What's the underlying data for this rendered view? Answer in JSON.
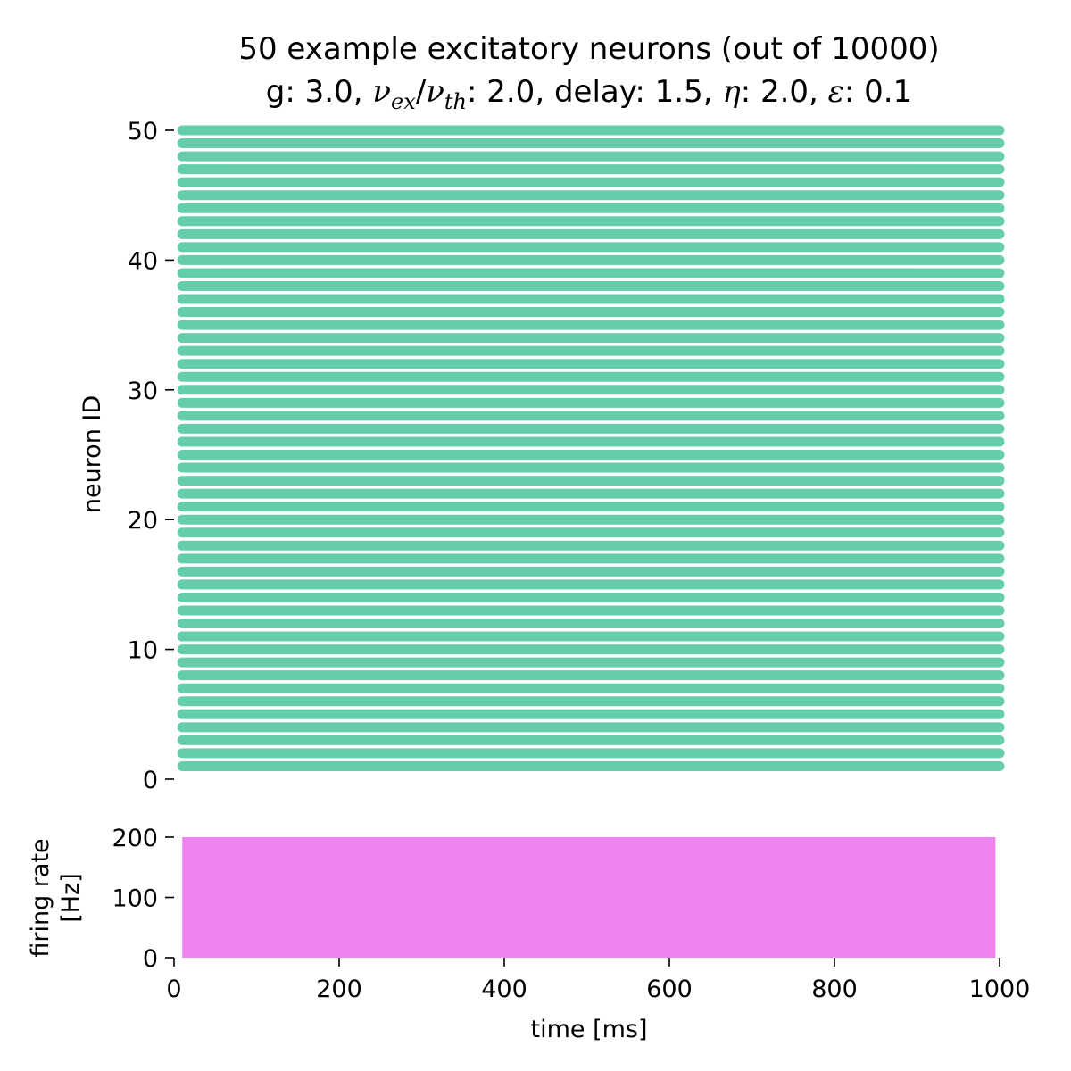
{
  "chart_data": [
    {
      "type": "scatter",
      "title_line1": "50 example excitatory neurons (out of 10000)",
      "title_line2": {
        "g_label": "g: ",
        "g": "3.0",
        "nu_ex": "ν",
        "nu_ex_sub": "ex",
        "slash": "/",
        "nu_th": "ν",
        "nu_th_sub": "th",
        "ratio_value": ": 2.0, ",
        "delay_text": "delay: 1.5, ",
        "eta_symbol": "η",
        "eta_value": ": 2.0, ",
        "eps_symbol": "ε",
        "eps_value": ": 0.1"
      },
      "xlabel": "",
      "ylabel": "neuron ID",
      "xlim": [
        0,
        1000
      ],
      "ylim": [
        0,
        50
      ],
      "yticks": [
        "0",
        "10",
        "20",
        "30",
        "40",
        "50"
      ],
      "ytick_values": [
        0,
        10,
        20,
        30,
        40,
        50
      ],
      "neuron_ids": [
        1,
        2,
        3,
        4,
        5,
        6,
        7,
        8,
        9,
        10,
        11,
        12,
        13,
        14,
        15,
        16,
        17,
        18,
        19,
        20,
        21,
        22,
        23,
        24,
        25,
        26,
        27,
        28,
        29,
        30,
        31,
        32,
        33,
        34,
        35,
        36,
        37,
        38,
        39,
        40,
        41,
        42,
        43,
        44,
        45,
        46,
        47,
        48,
        49,
        50
      ],
      "spike_time_range": [
        10,
        1000
      ],
      "color": "#66cdaa",
      "grid": false
    },
    {
      "type": "bar",
      "xlabel": "time [ms]",
      "ylabel_line1": "firing rate",
      "ylabel_line2": "[Hz]",
      "xlim": [
        0,
        1000
      ],
      "ylim": [
        0,
        200
      ],
      "xticks": [
        "0",
        "200",
        "400",
        "600",
        "800",
        "1000"
      ],
      "xtick_values": [
        0,
        200,
        400,
        600,
        800,
        1000
      ],
      "yticks": [
        "0",
        "100",
        "200"
      ],
      "ytick_values": [
        0,
        100,
        200
      ],
      "rate_value": 200,
      "time_range": [
        10,
        995
      ],
      "color": "#ee82ee",
      "grid": false
    }
  ]
}
